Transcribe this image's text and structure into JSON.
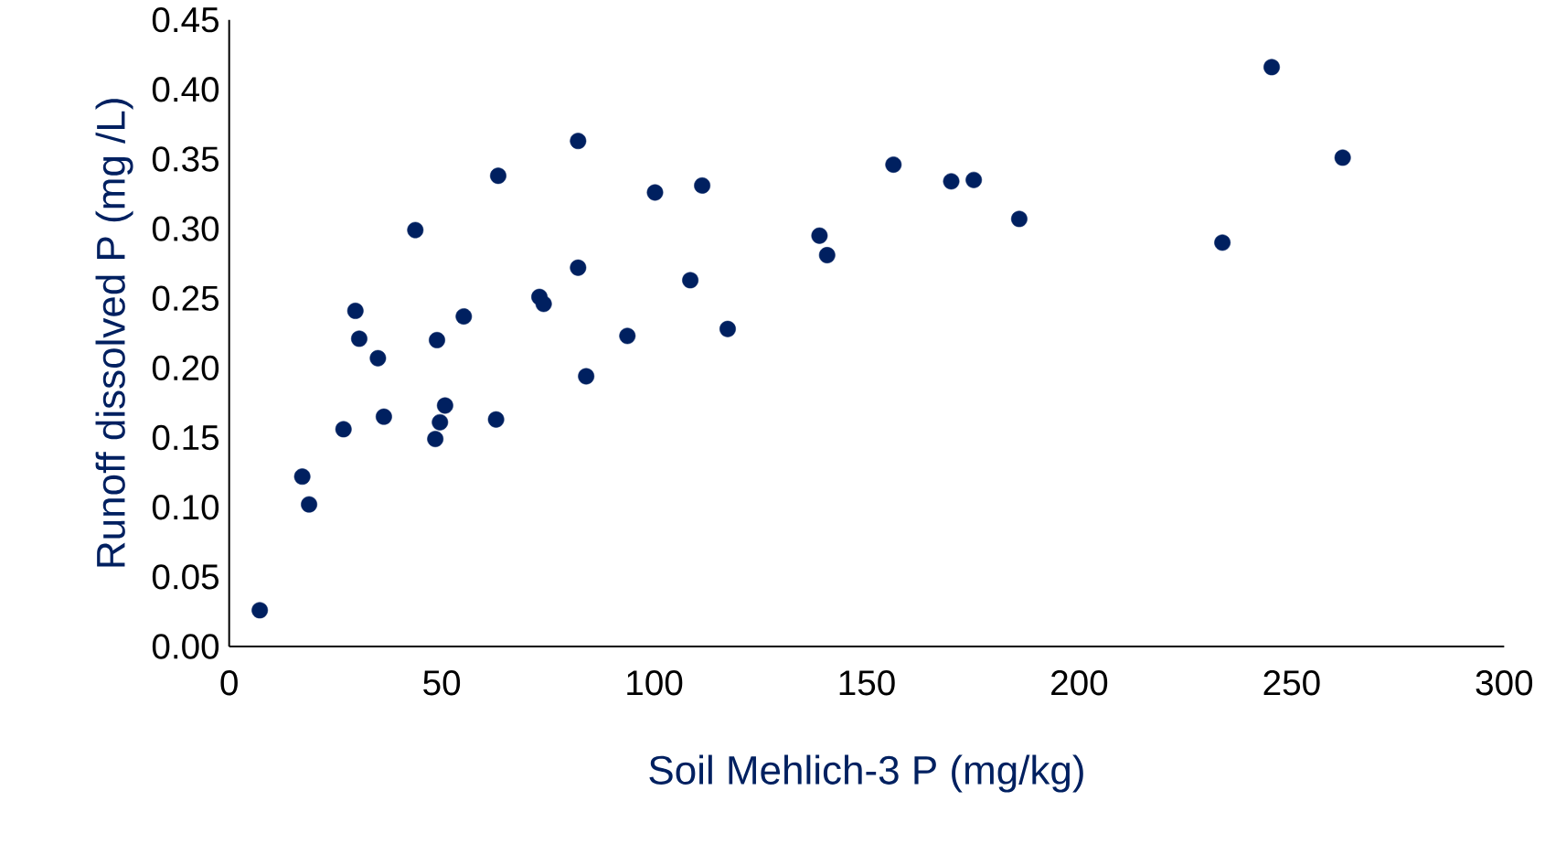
{
  "chart_data": {
    "type": "scatter",
    "xlabel": "Soil Mehlich-3 P (mg/kg)",
    "ylabel": "Runoff dissolved P (mg /L)",
    "x": [
      7.2,
      17.2,
      18.8,
      26.9,
      29.7,
      30.6,
      35.0,
      36.4,
      43.8,
      48.5,
      48.9,
      49.6,
      50.8,
      55.2,
      62.8,
      63.3,
      73.0,
      74.0,
      82.1,
      82.1,
      84.0,
      93.7,
      100.2,
      108.5,
      111.3,
      117.3,
      138.9,
      140.7,
      156.3,
      169.9,
      175.2,
      185.9,
      233.7,
      245.3,
      262.0
    ],
    "values": [
      0.026,
      0.122,
      0.102,
      0.156,
      0.241,
      0.221,
      0.207,
      0.165,
      0.299,
      0.149,
      0.22,
      0.161,
      0.173,
      0.237,
      0.163,
      0.338,
      0.251,
      0.246,
      0.363,
      0.272,
      0.194,
      0.223,
      0.326,
      0.263,
      0.331,
      0.228,
      0.295,
      0.281,
      0.346,
      0.334,
      0.335,
      0.307,
      0.29,
      0.416,
      0.351
    ],
    "color": "#002060",
    "marker": "circle",
    "xlim": [
      0,
      300
    ],
    "ylim": [
      0,
      0.45
    ],
    "xticks": [
      0,
      50,
      100,
      150,
      200,
      250,
      300
    ],
    "yticks": [
      {
        "value": 0,
        "label": "0.00"
      },
      {
        "value": 0.05,
        "label": "0.05"
      },
      {
        "value": 0.1,
        "label": "0.10"
      },
      {
        "value": 0.15,
        "label": "0.15"
      },
      {
        "value": 0.2,
        "label": "0.20"
      },
      {
        "value": 0.25,
        "label": "0.25"
      },
      {
        "value": 0.3,
        "label": "0.30"
      },
      {
        "value": 0.35,
        "label": "0.35"
      },
      {
        "value": 0.4,
        "label": "0.40"
      },
      {
        "value": 0.45,
        "label": "0.45"
      }
    ]
  }
}
